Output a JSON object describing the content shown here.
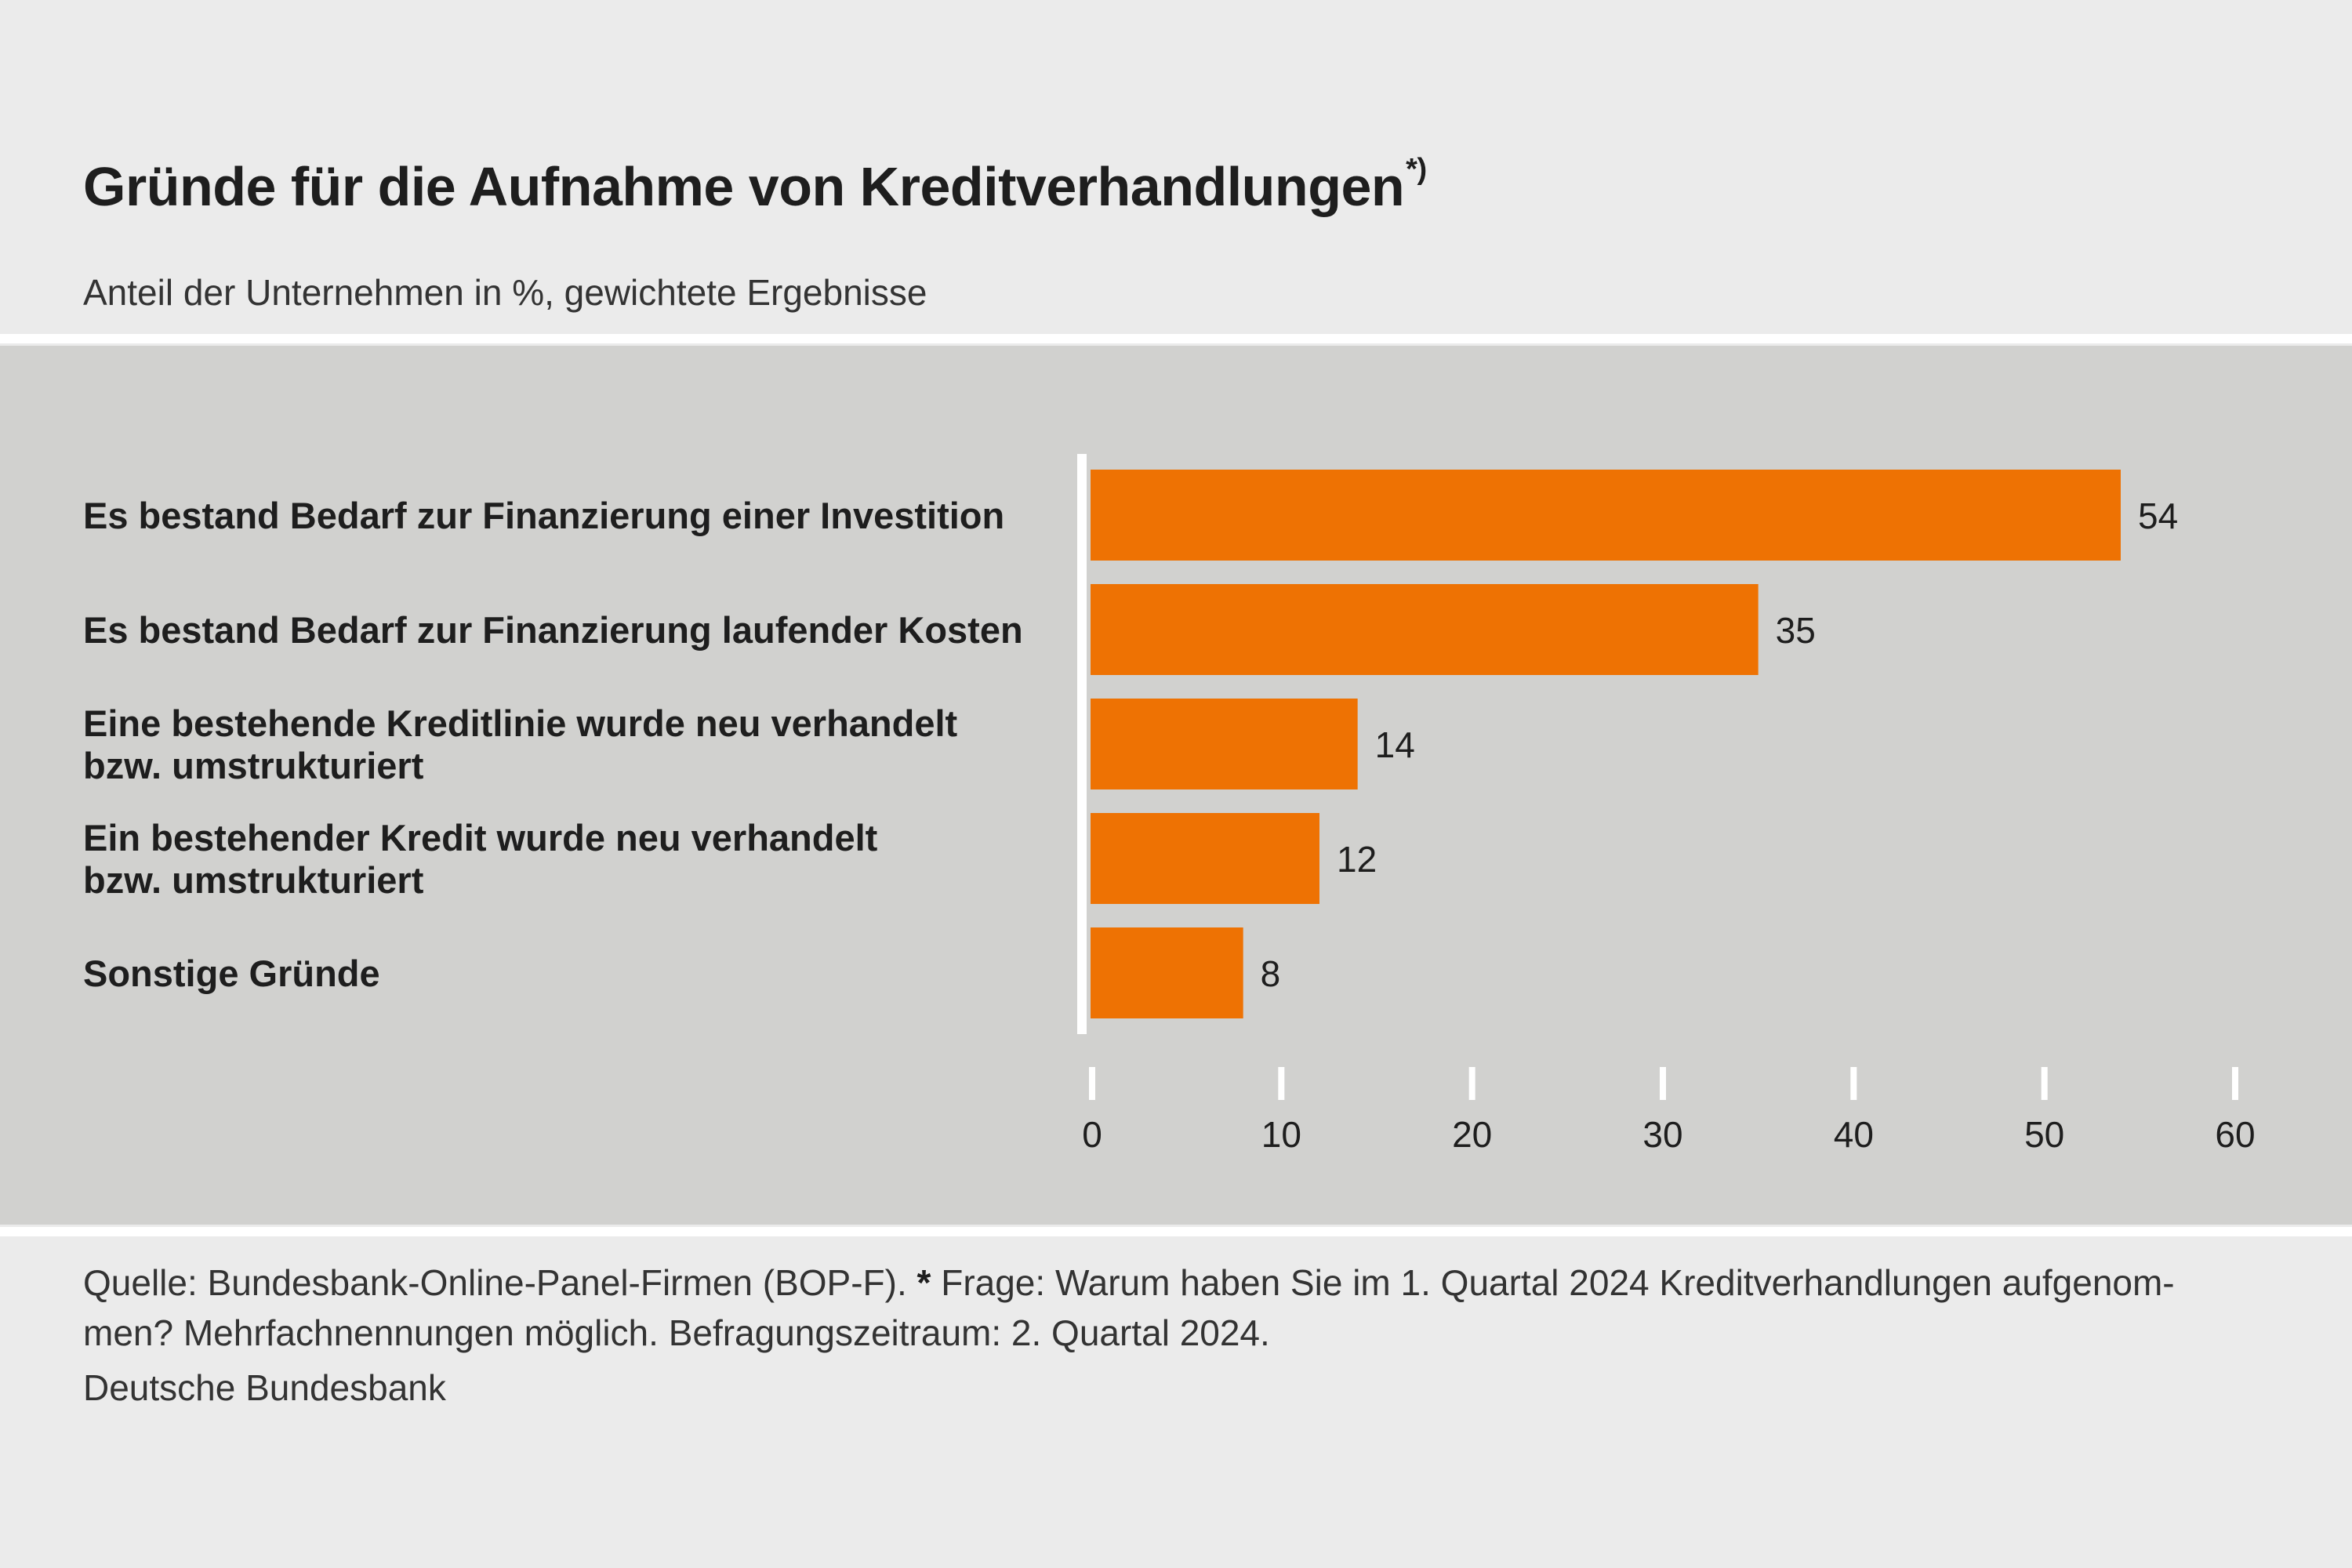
{
  "title": "Gründe für die Aufnahme von Kreditverhandlungen",
  "title_mark": "*)",
  "subtitle": "Anteil der Unternehmen in %, gewichtete Ergebnisse",
  "footer": {
    "source_part1": "Quelle: Bundesbank-Online-Panel-Firmen (BOP-F).",
    "star": "*",
    "source_part2": "Frage: Warum haben Sie im 1. Quartal 2024 Kreditverhandlungen aufgenom-",
    "source_line2": "men? Mehrfachnennungen möglich. Befragungszeitraum: 2. Quartal 2024.",
    "publisher": "Deutsche Bundesbank"
  },
  "colors": {
    "bar": "#ee7203",
    "panel": "#d1d1cf",
    "page": "#ebebeb",
    "axis": "#ffffff"
  },
  "chart_data": {
    "type": "bar",
    "orientation": "horizontal",
    "categories": [
      [
        "Es bestand Bedarf zur Finanzierung einer Investition"
      ],
      [
        "Es bestand Bedarf zur Finanzierung laufender Kosten"
      ],
      [
        "Eine bestehende Kreditlinie wurde neu verhandelt",
        "bzw. umstrukturiert"
      ],
      [
        "Ein bestehender Kredit wurde neu verhandelt",
        "bzw. umstrukturiert"
      ],
      [
        "Sonstige Gründe"
      ]
    ],
    "values": [
      54,
      35,
      14,
      12,
      8
    ],
    "value_labels": [
      "54",
      "35",
      "14",
      "12",
      "8"
    ],
    "xlim": [
      0,
      60
    ],
    "xticks": [
      0,
      10,
      20,
      30,
      40,
      50,
      60
    ],
    "xtick_labels": [
      "0",
      "10",
      "20",
      "30",
      "40",
      "50",
      "60"
    ],
    "grid": false
  }
}
